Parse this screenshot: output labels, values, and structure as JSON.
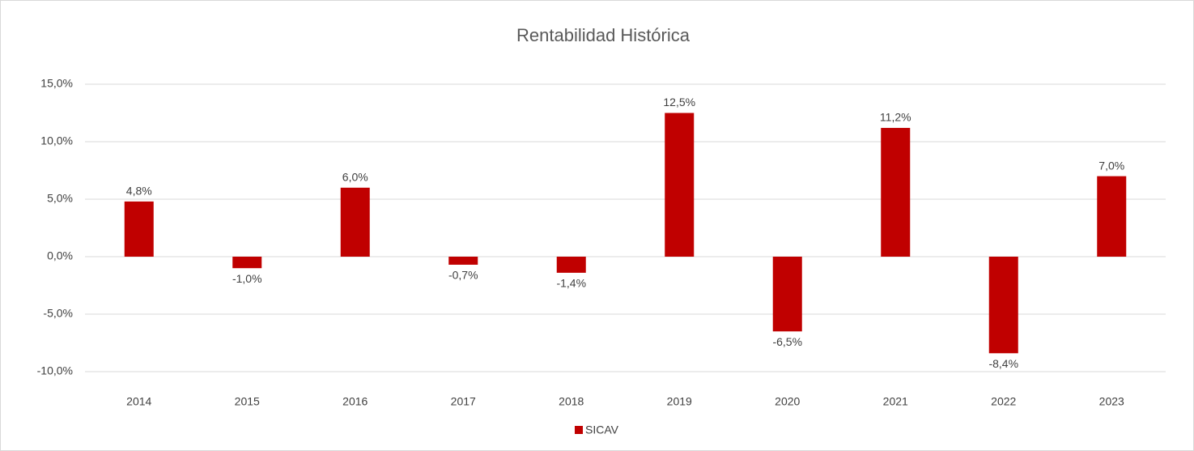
{
  "chart_data": {
    "type": "bar",
    "title": "Rentabilidad Histórica",
    "categories": [
      "2014",
      "2015",
      "2016",
      "2017",
      "2018",
      "2019",
      "2020",
      "2021",
      "2022",
      "2023"
    ],
    "series": [
      {
        "name": "SICAV",
        "color": "#c00000",
        "values": [
          4.8,
          -1.0,
          6.0,
          -0.7,
          -1.4,
          12.5,
          -6.5,
          11.2,
          -8.4,
          7.0
        ],
        "value_labels": [
          "4,8%",
          "-1,0%",
          "6,0%",
          "-0,7%",
          "-1,4%",
          "12,5%",
          "-6,5%",
          "11,2%",
          "-8,4%",
          "7,0%"
        ]
      }
    ],
    "ylim": [
      -10,
      15
    ],
    "yticks": [
      {
        "value": -10,
        "label": "-10,0%"
      },
      {
        "value": -5,
        "label": "-5,0%"
      },
      {
        "value": 0,
        "label": "0,0%"
      },
      {
        "value": 5,
        "label": "5,0%"
      },
      {
        "value": 10,
        "label": "10,0%"
      },
      {
        "value": 15,
        "label": "15,0%"
      }
    ],
    "grid": true,
    "legend": "bottom"
  }
}
